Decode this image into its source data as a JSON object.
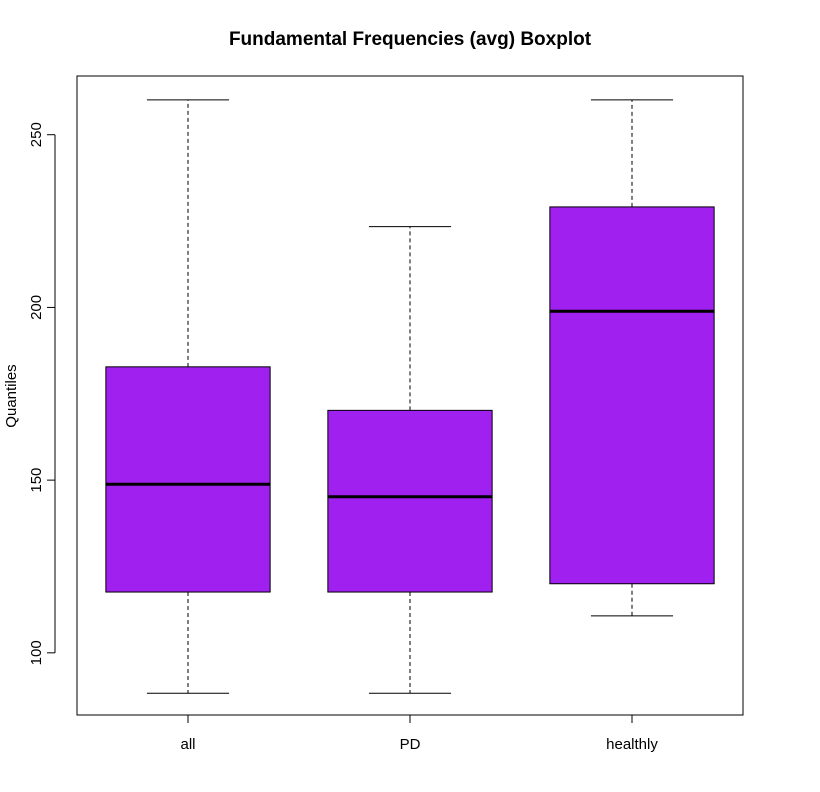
{
  "chart_data": {
    "type": "boxplot",
    "title": "Fundamental Frequencies (avg) Boxplot",
    "xlabel": "",
    "ylabel": "Quantiles",
    "ylim": [
      82,
      267
    ],
    "yticks": [
      100,
      150,
      200,
      250
    ],
    "ytick_labels": [
      "100",
      "150",
      "200",
      "250"
    ],
    "categories": [
      "all",
      "PD",
      "healthly"
    ],
    "box_color": "#a020f0",
    "median_color": "#000000",
    "grid": false,
    "legend": "none",
    "boxes": [
      {
        "category": "all",
        "min": 88.3,
        "q1": 117.6,
        "median": 148.8,
        "q3": 182.8,
        "max": 260.1
      },
      {
        "category": "PD",
        "min": 88.3,
        "q1": 117.6,
        "median": 145.2,
        "q3": 170.2,
        "max": 223.4
      },
      {
        "category": "healthly",
        "min": 110.7,
        "q1": 120.0,
        "median": 198.9,
        "q3": 229.1,
        "max": 260.1
      }
    ]
  }
}
